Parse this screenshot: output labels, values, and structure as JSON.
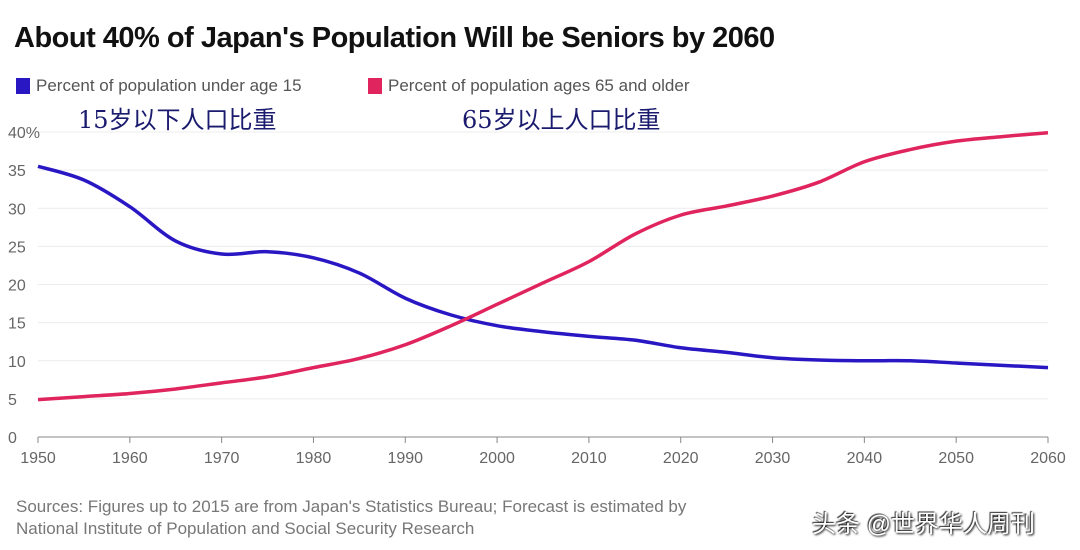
{
  "title": "About 40% of Japan's Population Will be Seniors by 2060",
  "legend": [
    {
      "label": "Percent of population under age 15",
      "color": "#2a17c4"
    },
    {
      "label": "Percent of population ages 65 and older",
      "color": "#e0245e"
    }
  ],
  "annotations": [
    "15岁以下人口比重",
    "65岁以上人口比重"
  ],
  "source": [
    "Sources: Figures up to 2015 are from Japan's Statistics Bureau; Forecast is estimated by",
    "National Institute of Population and Social Security Research"
  ],
  "watermark": "头条 @世界华人周刊",
  "chart_data": {
    "type": "line",
    "x": [
      1950,
      1955,
      1960,
      1965,
      1970,
      1975,
      1980,
      1985,
      1990,
      1995,
      2000,
      2005,
      2010,
      2015,
      2020,
      2025,
      2030,
      2035,
      2040,
      2045,
      2050,
      2055,
      2060
    ],
    "series": [
      {
        "name": "Percent of population under age 15",
        "color": "#2a17c4",
        "values": [
          35.5,
          33.7,
          30.2,
          25.7,
          24.0,
          24.3,
          23.5,
          21.5,
          18.2,
          16.0,
          14.6,
          13.8,
          13.2,
          12.7,
          11.7,
          11.1,
          10.4,
          10.1,
          10.0,
          10.0,
          9.7,
          9.4,
          9.1
        ]
      },
      {
        "name": "Percent of population ages 65 and older",
        "color": "#e0245e",
        "values": [
          4.9,
          5.3,
          5.7,
          6.3,
          7.1,
          7.9,
          9.1,
          10.3,
          12.1,
          14.6,
          17.4,
          20.2,
          23.0,
          26.6,
          29.1,
          30.3,
          31.6,
          33.4,
          36.1,
          37.7,
          38.8,
          39.4,
          39.9
        ]
      }
    ],
    "xlim": [
      1950,
      2060
    ],
    "ylim": [
      0,
      40
    ],
    "xticks": [
      "1950",
      "1960",
      "1970",
      "1980",
      "1990",
      "2000",
      "2010",
      "2020",
      "2030",
      "2040",
      "2050",
      "2060"
    ],
    "yticks": [
      "0",
      "5",
      "10",
      "15",
      "20",
      "25",
      "30",
      "35",
      "40%"
    ],
    "grid": true,
    "legend_position": "top-left"
  }
}
